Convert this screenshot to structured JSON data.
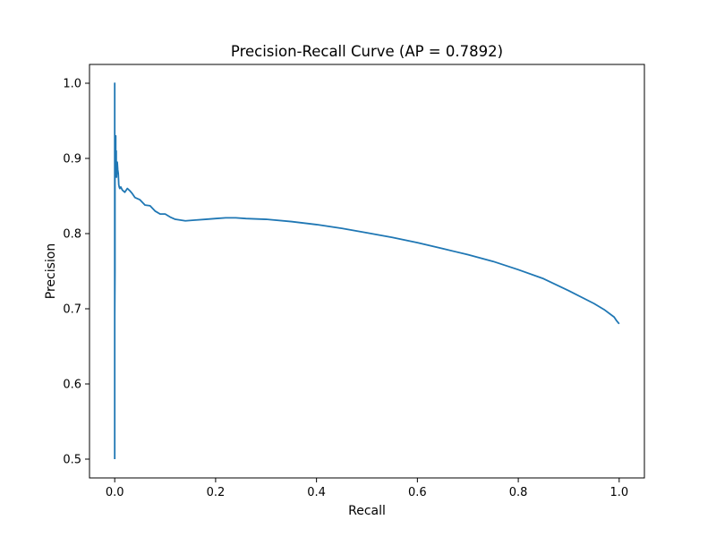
{
  "chart_data": {
    "type": "line",
    "title": "Precision-Recall Curve (AP = 0.7892)",
    "xlabel": "Recall",
    "ylabel": "Precision",
    "xlim": [
      -0.05,
      1.05
    ],
    "ylim": [
      0.475,
      1.025
    ],
    "xticks": [
      0.0,
      0.2,
      0.4,
      0.6,
      0.8,
      1.0
    ],
    "xtick_labels": [
      "0.0",
      "0.2",
      "0.4",
      "0.6",
      "0.8",
      "1.0"
    ],
    "yticks": [
      0.5,
      0.6,
      0.7,
      0.8,
      0.9,
      1.0
    ],
    "ytick_labels": [
      "0.5",
      "0.6",
      "0.7",
      "0.8",
      "0.9",
      "1.0"
    ],
    "grid": false,
    "legend": false,
    "series": [
      {
        "color": "#1f77b4",
        "x": [
          0.0,
          0.0,
          0.0,
          0.0005,
          0.0005,
          0.001,
          0.001,
          0.0015,
          0.002,
          0.002,
          0.0025,
          0.003,
          0.003,
          0.0035,
          0.004,
          0.0045,
          0.005,
          0.006,
          0.007,
          0.008,
          0.009,
          0.01,
          0.012,
          0.015,
          0.02,
          0.025,
          0.03,
          0.035,
          0.04,
          0.05,
          0.06,
          0.07,
          0.08,
          0.09,
          0.1,
          0.11,
          0.12,
          0.14,
          0.16,
          0.18,
          0.2,
          0.22,
          0.24,
          0.26,
          0.3,
          0.35,
          0.4,
          0.45,
          0.5,
          0.55,
          0.6,
          0.65,
          0.7,
          0.75,
          0.8,
          0.85,
          0.9,
          0.95,
          0.97,
          0.99,
          0.995,
          1.0
        ],
        "y": [
          0.5,
          1.0,
          0.69,
          0.75,
          0.9,
          0.93,
          0.88,
          0.91,
          0.93,
          0.9,
          0.88,
          0.91,
          0.89,
          0.875,
          0.89,
          0.88,
          0.895,
          0.885,
          0.88,
          0.865,
          0.862,
          0.86,
          0.862,
          0.858,
          0.855,
          0.86,
          0.857,
          0.853,
          0.848,
          0.845,
          0.838,
          0.837,
          0.83,
          0.826,
          0.826,
          0.822,
          0.819,
          0.817,
          0.818,
          0.819,
          0.82,
          0.821,
          0.821,
          0.82,
          0.819,
          0.816,
          0.812,
          0.807,
          0.801,
          0.795,
          0.788,
          0.78,
          0.772,
          0.763,
          0.752,
          0.74,
          0.724,
          0.707,
          0.699,
          0.689,
          0.684,
          0.68
        ]
      }
    ]
  }
}
